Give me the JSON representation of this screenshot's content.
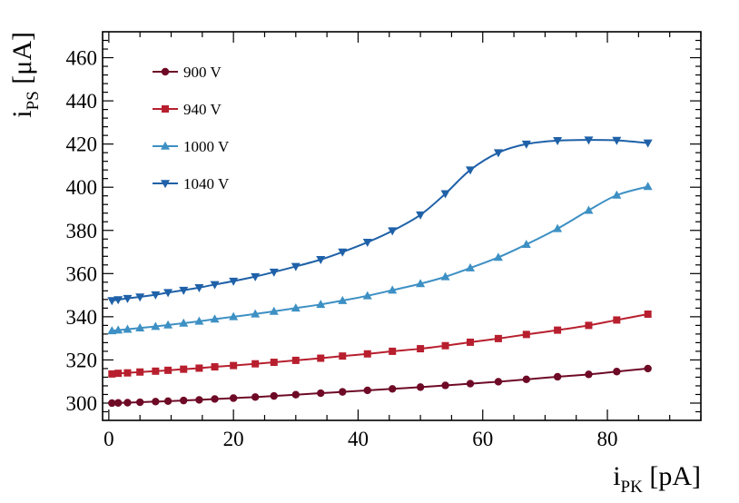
{
  "chart_data": {
    "type": "line",
    "title": "",
    "xlabel": {
      "main": "i",
      "sub": "PK",
      "unit": " [pA]"
    },
    "ylabel": {
      "main": "i",
      "sub": "PS",
      "unit": " [μA]"
    },
    "xlim": [
      -1,
      95
    ],
    "ylim": [
      292,
      472
    ],
    "x_ticks": [
      0,
      20,
      40,
      60,
      80
    ],
    "y_ticks": [
      300,
      320,
      340,
      360,
      380,
      400,
      420,
      440,
      460
    ],
    "legend_position": "top-left",
    "series": [
      {
        "name": "900 V",
        "color": "#6e0a26",
        "marker": "circle",
        "x": [
          0.5,
          1.5,
          3,
          5,
          7.5,
          9.5,
          12,
          14.5,
          17,
          20,
          23.5,
          26.5,
          30,
          34,
          37.5,
          41.5,
          45.5,
          50,
          54,
          58,
          62.5,
          67,
          72,
          77,
          81.5,
          86.5
        ],
        "y": [
          300.0,
          300.1,
          300.2,
          300.4,
          300.7,
          300.9,
          301.2,
          301.5,
          301.9,
          302.3,
          302.8,
          303.3,
          303.9,
          304.6,
          305.2,
          305.9,
          306.6,
          307.4,
          308.2,
          309.0,
          309.9,
          311.0,
          312.2,
          313.3,
          314.6,
          316.0
        ]
      },
      {
        "name": "940 V",
        "color": "#b81f2e",
        "marker": "square",
        "x": [
          0.5,
          1.5,
          3,
          5,
          7.5,
          9.5,
          12,
          14.5,
          17,
          20,
          23.5,
          26.5,
          30,
          34,
          37.5,
          41.5,
          45.5,
          50,
          54,
          58,
          62.5,
          67,
          72,
          77,
          81.5,
          86.5
        ],
        "y": [
          313.5,
          313.8,
          314.0,
          314.4,
          314.8,
          315.2,
          315.7,
          316.2,
          316.8,
          317.4,
          318.2,
          318.9,
          319.8,
          320.8,
          321.8,
          322.8,
          324.0,
          325.2,
          326.6,
          328.2,
          329.9,
          331.8,
          333.8,
          336.0,
          338.5,
          341.2
        ]
      },
      {
        "name": "1000 V",
        "color": "#3d90c4",
        "marker": "triangle-up",
        "x": [
          0.5,
          1.5,
          3,
          5,
          7.5,
          9.5,
          12,
          14.5,
          17,
          20,
          23.5,
          26.5,
          30,
          34,
          37.5,
          41.5,
          45.5,
          50,
          54,
          58,
          62.5,
          67,
          72,
          77,
          81.5,
          86.5
        ],
        "y": [
          333.5,
          333.8,
          334.2,
          334.8,
          335.5,
          336.2,
          337.0,
          337.9,
          338.9,
          340.0,
          341.3,
          342.5,
          344.0,
          345.7,
          347.5,
          349.7,
          352.3,
          355.3,
          358.5,
          362.6,
          367.5,
          373.5,
          380.8,
          389.3,
          396.3,
          400.3
        ]
      },
      {
        "name": "1040 V",
        "color": "#1f61a8",
        "marker": "triangle-down",
        "x": [
          0.5,
          1.5,
          3,
          5,
          7.5,
          9.5,
          12,
          14.5,
          17,
          20,
          23.5,
          26.5,
          30,
          34,
          37.5,
          41.5,
          45.5,
          50,
          54,
          58,
          62.5,
          67,
          72,
          77,
          81.5,
          86.5
        ],
        "y": [
          347.5,
          347.9,
          348.5,
          349.2,
          350.2,
          351.2,
          352.3,
          353.5,
          354.9,
          356.5,
          358.6,
          360.7,
          363.3,
          366.5,
          370.0,
          374.5,
          379.8,
          387.2,
          397.0,
          408.0,
          416.0,
          420.0,
          421.6,
          421.9,
          421.7,
          420.5
        ]
      }
    ]
  }
}
